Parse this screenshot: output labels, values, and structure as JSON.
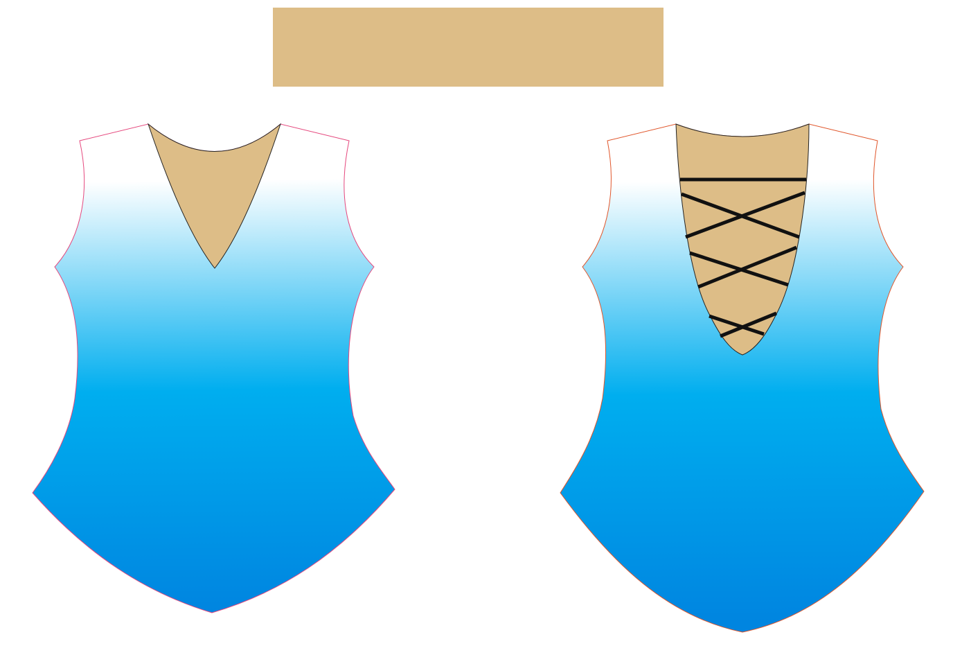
{
  "colors": {
    "skin_swatch": "#DDBD87",
    "neckline_fill": "#DDBD87",
    "gradient_top": "#FFFFFF",
    "gradient_mid": "#00AEEF",
    "gradient_bottom": "#0085E0",
    "front_outline": "#E5477D",
    "back_outline": "#E0552A",
    "neck_outline": "#222222",
    "lacing": "#111111"
  },
  "swatch": {
    "icon": "skin-color-swatch"
  },
  "garments": [
    {
      "id": "front-bodice",
      "icon": "v-neck-bodice",
      "neckline": "v-neck"
    },
    {
      "id": "back-bodice",
      "icon": "laced-back-bodice",
      "neckline": "scoop-with-lacing"
    }
  ]
}
